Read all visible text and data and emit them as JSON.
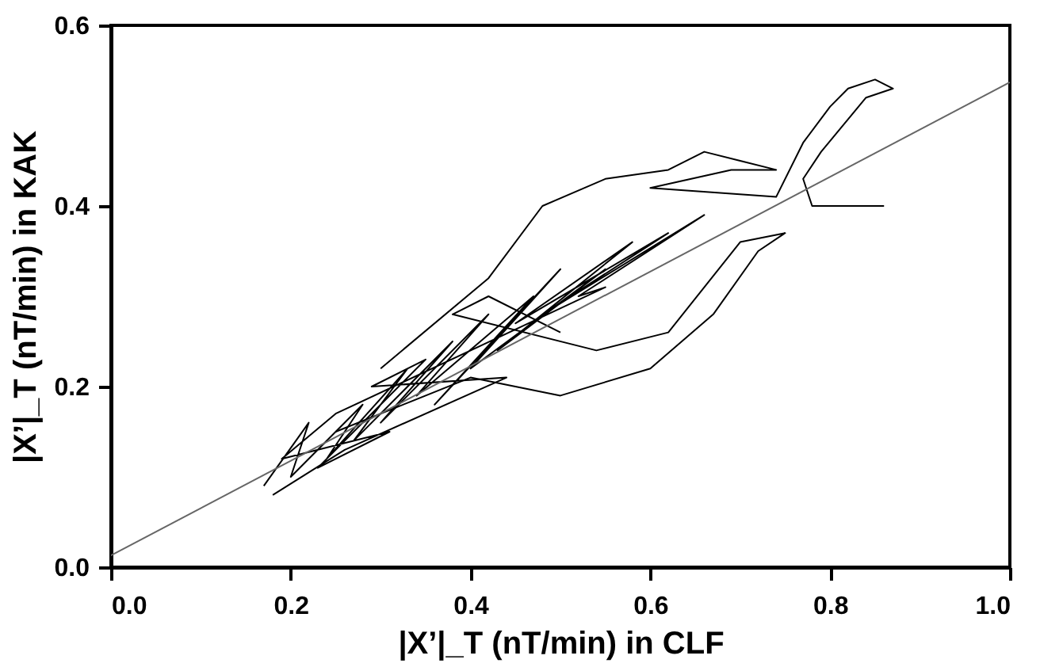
{
  "chart_data": {
    "type": "line",
    "xlabel": "|X’|_T (nT/min) in CLF",
    "ylabel": "|X’|_T (nT/min) in KAK",
    "xlim": [
      0,
      1
    ],
    "ylim": [
      0,
      0.6
    ],
    "xticks": [
      "0.0",
      0.2,
      0.4,
      0.6,
      0.8,
      "1.0"
    ],
    "yticks": [
      "0.0",
      0.2,
      0.4,
      0.6
    ],
    "grid": false,
    "series": [
      {
        "color": "#000000",
        "x": [
          0.17,
          0.22,
          0.2,
          0.28,
          0.24,
          0.33,
          0.27,
          0.38,
          0.3,
          0.42,
          0.34,
          0.47,
          0.36,
          0.5,
          0.4,
          0.55,
          0.43,
          0.58,
          0.45,
          0.62,
          0.48,
          0.66,
          0.52,
          0.55,
          0.25,
          0.19,
          0.31,
          0.23,
          0.35,
          0.29,
          0.44,
          0.26,
          0.18
        ],
        "values": [
          0.09,
          0.16,
          0.1,
          0.18,
          0.12,
          0.22,
          0.14,
          0.25,
          0.16,
          0.28,
          0.19,
          0.3,
          0.18,
          0.33,
          0.22,
          0.33,
          0.24,
          0.36,
          0.27,
          0.37,
          0.28,
          0.39,
          0.3,
          0.31,
          0.17,
          0.12,
          0.15,
          0.11,
          0.23,
          0.2,
          0.21,
          0.13,
          0.08
        ]
      },
      {
        "color": "#000000",
        "x": [
          0.3,
          0.42,
          0.48,
          0.55,
          0.62,
          0.66,
          0.7,
          0.74,
          0.69,
          0.6,
          0.74,
          0.77,
          0.8,
          0.82,
          0.85,
          0.87,
          0.84,
          0.79,
          0.77,
          0.78,
          0.86
        ],
        "values": [
          0.22,
          0.32,
          0.4,
          0.43,
          0.44,
          0.46,
          0.45,
          0.44,
          0.44,
          0.42,
          0.41,
          0.47,
          0.51,
          0.53,
          0.54,
          0.53,
          0.52,
          0.46,
          0.43,
          0.4,
          0.4
        ]
      },
      {
        "color": "#000000",
        "x": [
          0.25,
          0.4,
          0.5,
          0.6,
          0.67,
          0.72,
          0.75,
          0.7,
          0.62,
          0.54,
          0.38,
          0.42,
          0.5
        ],
        "values": [
          0.15,
          0.21,
          0.19,
          0.22,
          0.28,
          0.35,
          0.37,
          0.36,
          0.26,
          0.24,
          0.28,
          0.3,
          0.26
        ]
      },
      {
        "color": "#666666",
        "x": [
          0,
          1
        ],
        "values": [
          0.013,
          0.537
        ]
      }
    ]
  }
}
